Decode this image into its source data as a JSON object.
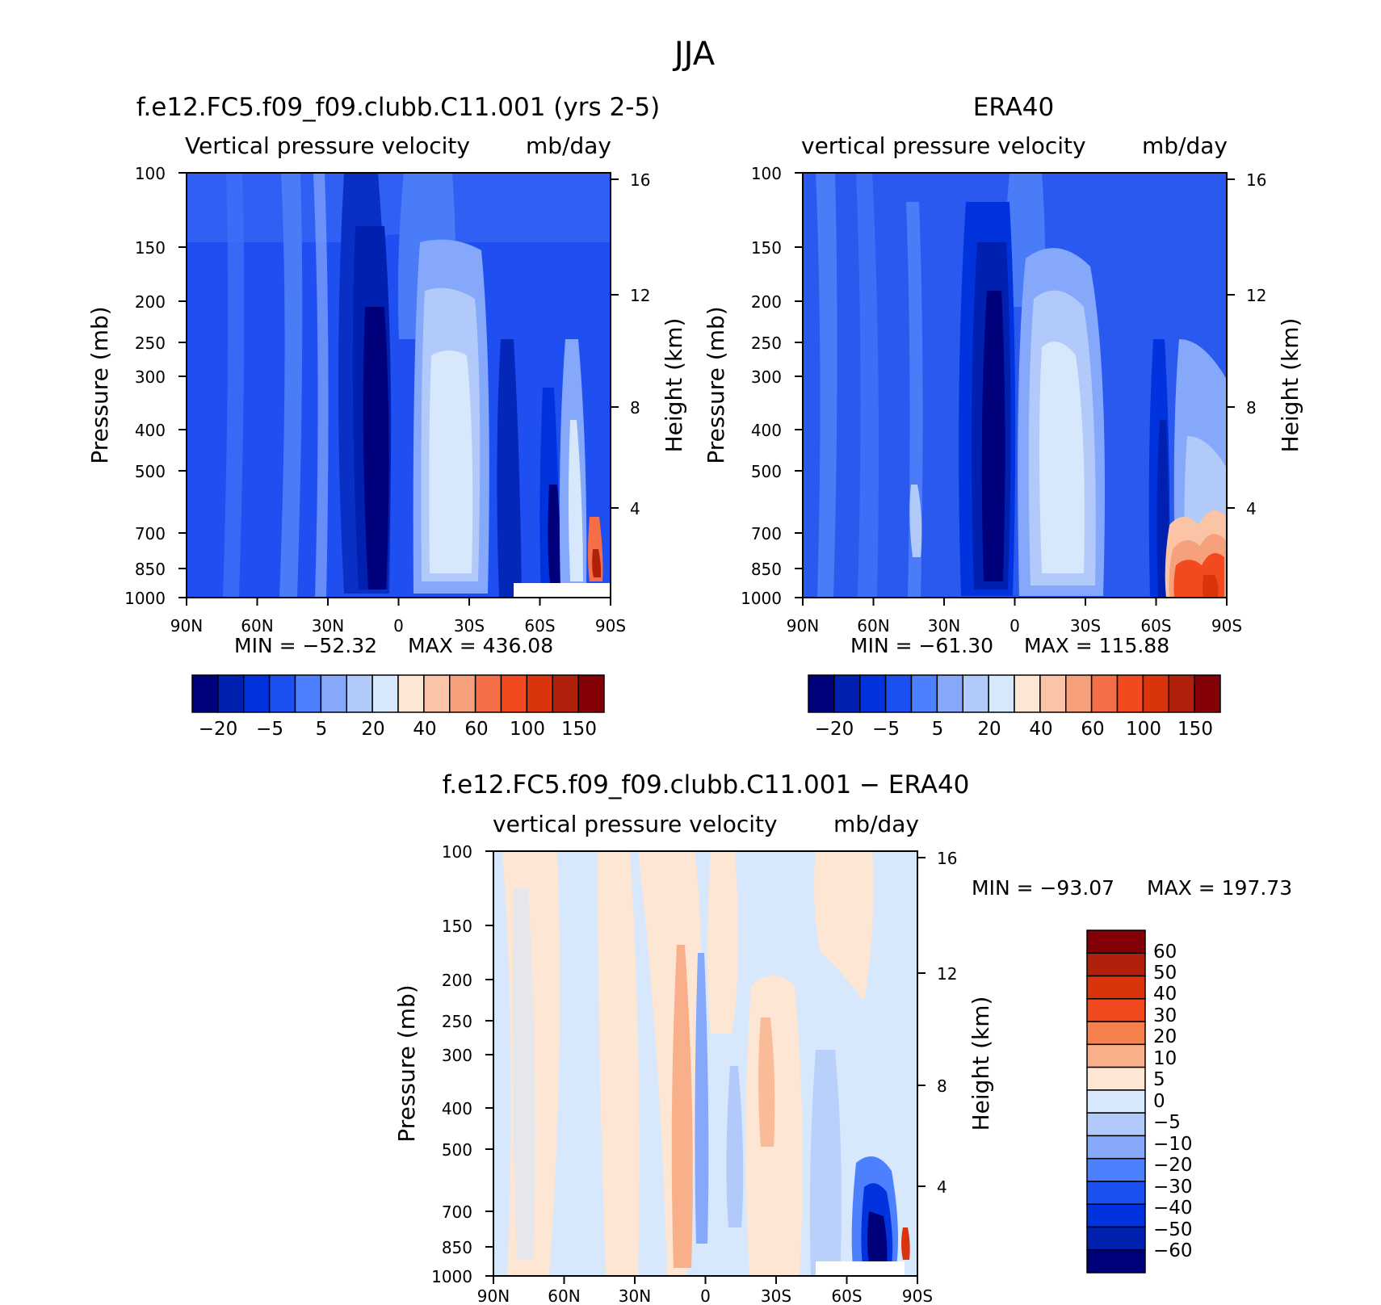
{
  "figure": {
    "title": "JJA"
  },
  "chart_data": [
    {
      "type": "heatmap",
      "title": "f.e12.FC5.f09_f09.clubb.C11.001 (yrs 2-5)",
      "variable": "Vertical pressure velocity",
      "units": "mb/day",
      "xlabel": "",
      "ylabel": "Pressure (mb)",
      "y2label": "Height (km)",
      "x_ticks": [
        "90N",
        "60N",
        "30N",
        "0",
        "30S",
        "60S",
        "90S"
      ],
      "y_ticks": [
        100,
        150,
        200,
        250,
        300,
        400,
        500,
        700,
        850,
        1000
      ],
      "y2_ticks": [
        16,
        12,
        8,
        4
      ],
      "y_scale": "log",
      "ylim": [
        1000,
        100
      ],
      "xlim": [
        90,
        -90
      ],
      "min_label": "MIN = −52.32",
      "max_label": "MAX = 436.08",
      "min": -52.32,
      "max": 436.08,
      "colorbar": {
        "orientation": "horizontal",
        "tick_labels": [
          "−20",
          "−5",
          "5",
          "20",
          "40",
          "60",
          "100",
          "150"
        ],
        "levels": [
          -30,
          -20,
          -10,
          -5,
          0,
          5,
          10,
          20,
          30,
          40,
          50,
          60,
          80,
          100,
          120,
          150
        ],
        "colors": [
          "#00007a",
          "#0020b0",
          "#0033dd",
          "#1a4ff0",
          "#4d80ff",
          "#86a8fb",
          "#b2caf9",
          "#d7e7fc",
          "#fde6d4",
          "#fbc4a6",
          "#f7a17c",
          "#f46f48",
          "#f24a1e",
          "#d9340c",
          "#b1200b",
          "#820006"
        ]
      },
      "features": [
        {
          "lat": -8,
          "width": 10,
          "p_top": 200,
          "p_bottom": 1000,
          "value": -35
        },
        {
          "lat": -30,
          "width": 20,
          "p_top": 180,
          "p_bottom": 900,
          "value": 35
        },
        {
          "lat": -72,
          "width": 10,
          "p_top": 270,
          "p_bottom": 1000,
          "value": -20
        },
        {
          "lat": -85,
          "width": 6,
          "p_top": 650,
          "p_bottom": 900,
          "value": 120
        }
      ]
    },
    {
      "type": "heatmap",
      "title": "ERA40",
      "variable": "vertical pressure velocity",
      "units": "mb/day",
      "xlabel": "",
      "ylabel": "Pressure (mb)",
      "y2label": "Height (km)",
      "x_ticks": [
        "90N",
        "60N",
        "30N",
        "0",
        "30S",
        "60S",
        "90S"
      ],
      "y_ticks": [
        100,
        150,
        200,
        250,
        300,
        400,
        500,
        700,
        850,
        1000
      ],
      "y2_ticks": [
        16,
        12,
        8,
        4
      ],
      "y_scale": "log",
      "ylim": [
        1000,
        100
      ],
      "xlim": [
        90,
        -90
      ],
      "min_label": "MIN = −61.30",
      "max_label": "MAX = 115.88",
      "min": -61.3,
      "max": 115.88,
      "colorbar": {
        "orientation": "horizontal",
        "tick_labels": [
          "−20",
          "−5",
          "5",
          "20",
          "40",
          "60",
          "100",
          "150"
        ],
        "levels": [
          -30,
          -20,
          -10,
          -5,
          0,
          5,
          10,
          20,
          30,
          40,
          50,
          60,
          80,
          100,
          120,
          150
        ],
        "colors": [
          "#00007a",
          "#0020b0",
          "#0033dd",
          "#1a4ff0",
          "#4d80ff",
          "#86a8fb",
          "#b2caf9",
          "#d7e7fc",
          "#fde6d4",
          "#fbc4a6",
          "#f7a17c",
          "#f46f48",
          "#f24a1e",
          "#d9340c",
          "#b1200b",
          "#820006"
        ]
      },
      "features": [
        {
          "lat": -8,
          "width": 10,
          "p_top": 200,
          "p_bottom": 1000,
          "value": -40
        },
        {
          "lat": -30,
          "width": 22,
          "p_top": 170,
          "p_bottom": 900,
          "value": 30
        },
        {
          "lat": -80,
          "width": 14,
          "p_top": 700,
          "p_bottom": 1000,
          "value": 90
        }
      ]
    },
    {
      "type": "heatmap",
      "title": "f.e12.FC5.f09_f09.clubb.C11.001 − ERA40",
      "variable": "vertical pressure velocity",
      "units": "mb/day",
      "xlabel": "",
      "ylabel": "Pressure (mb)",
      "y2label": "Height (km)",
      "x_ticks": [
        "90N",
        "60N",
        "30N",
        "0",
        "30S",
        "60S",
        "90S"
      ],
      "y_ticks": [
        100,
        150,
        200,
        250,
        300,
        400,
        500,
        700,
        850,
        1000
      ],
      "y2_ticks": [
        16,
        12,
        8,
        4
      ],
      "y_scale": "log",
      "ylim": [
        1000,
        100
      ],
      "xlim": [
        90,
        -90
      ],
      "min_label": "MIN = −93.07",
      "max_label": "MAX = 197.73",
      "min": -93.07,
      "max": 197.73,
      "colorbar": {
        "orientation": "vertical",
        "tick_labels": [
          "60",
          "50",
          "40",
          "30",
          "20",
          "10",
          "5",
          "0",
          "−5",
          "−10",
          "−20",
          "−30",
          "−40",
          "−50",
          "−60"
        ],
        "levels": [
          -60,
          -50,
          -40,
          -30,
          -20,
          -10,
          -5,
          0,
          5,
          10,
          20,
          30,
          40,
          50,
          60
        ],
        "colors": [
          "#820006",
          "#b1200b",
          "#d9340c",
          "#f24a1e",
          "#f7804f",
          "#f9b08a",
          "#fde6d4",
          "#d7e7fc",
          "#b2caf9",
          "#86a8fb",
          "#4d80ff",
          "#1a4ff0",
          "#0033dd",
          "#0020b0",
          "#00007a"
        ]
      },
      "features": [
        {
          "lat": -10,
          "width": 6,
          "p_top": 230,
          "p_bottom": 1000,
          "value": 15
        },
        {
          "lat": -76,
          "width": 8,
          "p_top": 650,
          "p_bottom": 1000,
          "value": -50
        }
      ]
    }
  ]
}
